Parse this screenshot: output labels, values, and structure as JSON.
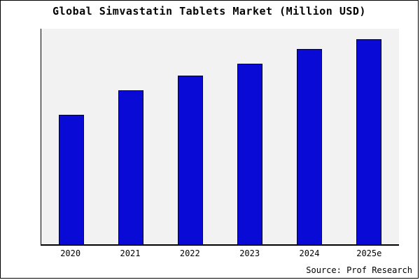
{
  "title": "Global Simvastatin Tablets Market (Million USD)",
  "source_note": "Source: Prof Research",
  "colors": {
    "bar": "#0a0ad6",
    "bar_border": "#000033",
    "plot_bg": "#f2f2f2",
    "page_bg": "#ffffff",
    "frame_border": "#000000"
  },
  "chart_data": {
    "type": "bar",
    "title": "Global Simvastatin Tablets Market (Million USD)",
    "categories": [
      "2020",
      "2021",
      "2022",
      "2023",
      "2024",
      "2025e"
    ],
    "values": [
      63,
      75,
      82,
      88,
      95,
      100
    ],
    "xlabel": "",
    "ylabel": "",
    "ylim": [
      0,
      105
    ],
    "grid": false,
    "legend": false,
    "annotations": [
      "Source: Prof Research"
    ]
  }
}
